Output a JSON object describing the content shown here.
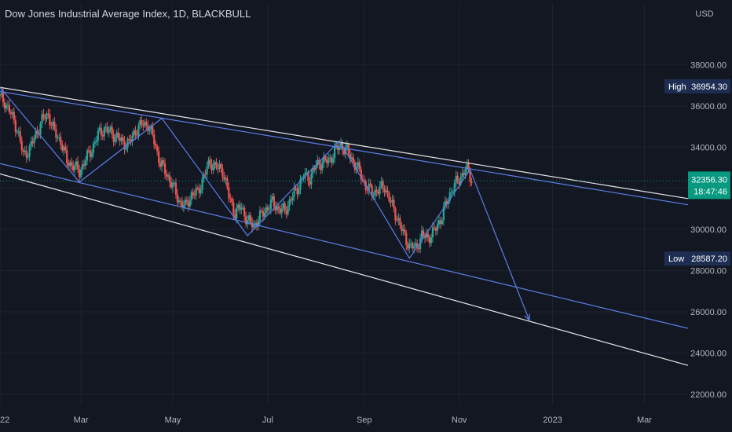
{
  "header": {
    "title": "Dow Jones Industrial Average Index, 1D, BLACKBULL"
  },
  "colors": {
    "background": "#131722",
    "up": "#26a69a",
    "down": "#ef5350",
    "trend_blue": "#5b7ee5",
    "trend_white": "#e6e6e6",
    "text": "#b2b5be",
    "current_badge": "#089981",
    "label_badge": "#1e2d52"
  },
  "chart_data": {
    "type": "candlestick",
    "currency_label": "USD",
    "ylim": [
      21500,
      40000
    ],
    "y_ticks": [
      22000,
      24000,
      26000,
      28000,
      30000,
      32000,
      34000,
      36000,
      38000
    ],
    "y_tick_labels": [
      "22000.00",
      "24000.00",
      "26000.00",
      "28000.00",
      "30000.00",
      "32000.00",
      "34000.00",
      "36000.00",
      "38000.00"
    ],
    "x_tick_labels": [
      "22",
      "Mar",
      "May",
      "Jul",
      "Sep",
      "Nov",
      "2023",
      "Mar"
    ],
    "x_tick_days": [
      0,
      52,
      111,
      172,
      234,
      295,
      355,
      414
    ],
    "xlim_days": [
      0,
      442
    ],
    "badges": {
      "high": {
        "label": "High",
        "value": 36954.3,
        "text": "36954.30"
      },
      "low": {
        "label": "Low",
        "value": 28587.2,
        "text": "28587.20"
      },
      "current": {
        "value": 32356.3,
        "text": "32356.30",
        "countdown": "18:47:46"
      }
    },
    "closes": [
      [
        0,
        36450
      ],
      [
        4,
        36200
      ],
      [
        8,
        35600
      ],
      [
        12,
        34900
      ],
      [
        16,
        33600
      ],
      [
        20,
        33900
      ],
      [
        24,
        34600
      ],
      [
        28,
        35300
      ],
      [
        32,
        35600
      ],
      [
        36,
        34700
      ],
      [
        40,
        34300
      ],
      [
        44,
        33300
      ],
      [
        48,
        33100
      ],
      [
        52,
        32800
      ],
      [
        56,
        33400
      ],
      [
        60,
        33900
      ],
      [
        64,
        34600
      ],
      [
        68,
        34900
      ],
      [
        72,
        34700
      ],
      [
        76,
        34500
      ],
      [
        80,
        34200
      ],
      [
        84,
        34200
      ],
      [
        88,
        34800
      ],
      [
        92,
        35100
      ],
      [
        96,
        35100
      ],
      [
        100,
        34300
      ],
      [
        104,
        33200
      ],
      [
        108,
        32700
      ],
      [
        112,
        32100
      ],
      [
        116,
        31400
      ],
      [
        120,
        31100
      ],
      [
        124,
        31700
      ],
      [
        128,
        31800
      ],
      [
        132,
        32600
      ],
      [
        136,
        33300
      ],
      [
        140,
        33000
      ],
      [
        144,
        32900
      ],
      [
        148,
        31600
      ],
      [
        152,
        30800
      ],
      [
        156,
        31100
      ],
      [
        160,
        30400
      ],
      [
        164,
        30200
      ],
      [
        168,
        30600
      ],
      [
        172,
        31000
      ],
      [
        176,
        31300
      ],
      [
        180,
        31000
      ],
      [
        184,
        30900
      ],
      [
        188,
        31500
      ],
      [
        192,
        32000
      ],
      [
        196,
        32600
      ],
      [
        200,
        32500
      ],
      [
        204,
        33100
      ],
      [
        208,
        33300
      ],
      [
        212,
        33300
      ],
      [
        216,
        33800
      ],
      [
        220,
        34100
      ],
      [
        224,
        33800
      ],
      [
        228,
        33300
      ],
      [
        232,
        32800
      ],
      [
        236,
        32100
      ],
      [
        240,
        31800
      ],
      [
        244,
        31900
      ],
      [
        248,
        32100
      ],
      [
        252,
        31300
      ],
      [
        256,
        30600
      ],
      [
        260,
        29800
      ],
      [
        264,
        29200
      ],
      [
        268,
        29100
      ],
      [
        272,
        29700
      ],
      [
        276,
        29600
      ],
      [
        280,
        29900
      ],
      [
        284,
        30500
      ],
      [
        288,
        31300
      ],
      [
        292,
        32100
      ],
      [
        296,
        32400
      ],
      [
        300,
        33000
      ],
      [
        304,
        32400
      ]
    ],
    "pattern_lines": [
      {
        "name": "upper-channel-white",
        "color": "white",
        "points": [
          [
            0,
            36900
          ],
          [
            442,
            31500
          ]
        ]
      },
      {
        "name": "upper-channel-blue",
        "color": "blue",
        "points": [
          [
            0,
            36700
          ],
          [
            442,
            31200
          ]
        ]
      },
      {
        "name": "lower-channel-blue",
        "color": "blue",
        "points": [
          [
            0,
            33200
          ],
          [
            442,
            25200
          ]
        ]
      },
      {
        "name": "lower-channel-white",
        "color": "white",
        "points": [
          [
            0,
            32700
          ],
          [
            442,
            23400
          ]
        ]
      }
    ],
    "zigzag": [
      [
        0,
        36900
      ],
      [
        51,
        32300
      ],
      [
        104,
        35400
      ],
      [
        159,
        29700
      ],
      [
        218,
        34300
      ],
      [
        263,
        28600
      ],
      [
        302,
        32900
      ],
      [
        340,
        25600
      ]
    ]
  }
}
